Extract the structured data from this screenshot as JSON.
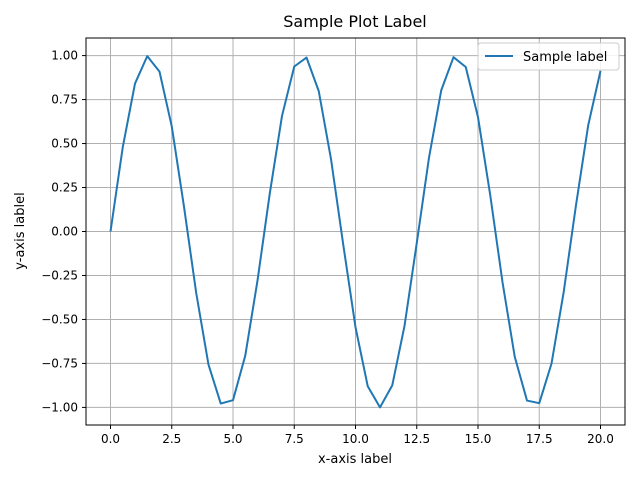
{
  "chart_data": {
    "type": "line",
    "title": "Sample Plot Label",
    "xlabel": "x-axis label",
    "ylabel": "y-axis lablel",
    "xlim": [
      -1,
      21
    ],
    "ylim": [
      -1.1,
      1.1
    ],
    "xticks": [
      0.0,
      2.5,
      5.0,
      7.5,
      10.0,
      12.5,
      15.0,
      17.5,
      20.0
    ],
    "xtick_labels": [
      "0.0",
      "2.5",
      "5.0",
      "7.5",
      "10.0",
      "12.5",
      "15.0",
      "17.5",
      "20.0"
    ],
    "yticks": [
      1.0,
      0.75,
      0.5,
      0.25,
      0.0,
      -0.25,
      -0.5,
      -0.75,
      -1.0
    ],
    "ytick_labels": [
      "1.00",
      "0.75",
      "0.50",
      "0.25",
      "0.00",
      "−0.25",
      "−0.50",
      "−0.75",
      "−1.00"
    ],
    "grid": true,
    "legend": {
      "position": "top-right",
      "entries": [
        "Sample label"
      ]
    },
    "series": [
      {
        "name": "Sample label",
        "color": "#1f77b4",
        "x": [
          0,
          0.5,
          1.0,
          1.5,
          2.0,
          2.5,
          3.0,
          3.5,
          4.0,
          4.5,
          5.0,
          5.5,
          6.0,
          6.5,
          7.0,
          7.5,
          8.0,
          8.5,
          9.0,
          9.5,
          10.0,
          10.5,
          11.0,
          11.5,
          12.0,
          12.5,
          13.0,
          13.5,
          14.0,
          14.5,
          15.0,
          15.5,
          16.0,
          16.5,
          17.0,
          17.5,
          18.0,
          18.5,
          19.0,
          19.5,
          20.0
        ],
        "y": [
          0.0,
          0.479,
          0.841,
          0.997,
          0.909,
          0.598,
          0.141,
          -0.351,
          -0.757,
          -0.978,
          -0.959,
          -0.706,
          -0.279,
          0.215,
          0.657,
          0.938,
          0.989,
          0.798,
          0.412,
          -0.075,
          -0.544,
          -0.88,
          -1.0,
          -0.875,
          -0.537,
          -0.066,
          0.42,
          0.803,
          0.991,
          0.935,
          0.65,
          0.206,
          -0.288,
          -0.712,
          -0.961,
          -0.976,
          -0.751,
          -0.342,
          0.15,
          0.605,
          0.913
        ]
      }
    ]
  }
}
